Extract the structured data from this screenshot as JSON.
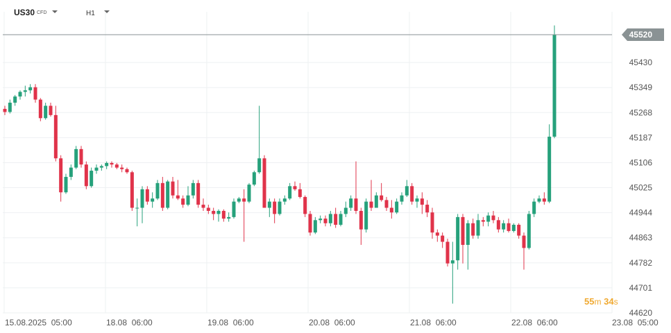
{
  "header": {
    "symbol": "US30",
    "symbol_type": "CFD",
    "timeframe": "H1"
  },
  "countdown": {
    "minutes": "55",
    "m_label": "m",
    "seconds": "34",
    "s_label": "s"
  },
  "colors": {
    "up": "#26a17b",
    "down": "#e0334a",
    "price_line": "#8a9294",
    "grid": "#eef0f2",
    "countdown": "#f0a930"
  },
  "chart_data": {
    "type": "candlestick",
    "title": "",
    "current_price": "45520",
    "ylim": [
      44620,
      45550
    ],
    "y_ticks": [
      "45430",
      "45349",
      "45268",
      "45187",
      "45106",
      "45025",
      "44944",
      "44863",
      "44782",
      "44701",
      "44620"
    ],
    "x_ticks": [
      "15.08.2025  05:00",
      "18.08  06:00",
      "19.08  06:00",
      "20.08  06:00",
      "21.08  06:00",
      "22.08  06:00",
      "23.08  05:00"
    ],
    "candles": [
      [
        45280,
        45290,
        45260,
        45270
      ],
      [
        45270,
        45310,
        45265,
        45300
      ],
      [
        45300,
        45325,
        45290,
        45320
      ],
      [
        45320,
        45340,
        45310,
        45335
      ],
      [
        45335,
        45355,
        45320,
        45340
      ],
      [
        45340,
        45360,
        45330,
        45350
      ],
      [
        45350,
        45360,
        45300,
        45310
      ],
      [
        45310,
        45315,
        45240,
        45250
      ],
      [
        45250,
        45300,
        45245,
        45290
      ],
      [
        45290,
        45300,
        45255,
        45260
      ],
      [
        45260,
        45290,
        45110,
        45120
      ],
      [
        45120,
        45130,
        44980,
        45010
      ],
      [
        45010,
        45070,
        45005,
        45060
      ],
      [
        45060,
        45100,
        45050,
        45090
      ],
      [
        45090,
        45160,
        45085,
        45150
      ],
      [
        45150,
        45160,
        45090,
        45100
      ],
      [
        45100,
        45110,
        45020,
        45030
      ],
      [
        45030,
        45090,
        45025,
        45080
      ],
      [
        45080,
        45100,
        45070,
        45090
      ],
      [
        45090,
        45100,
        45080,
        45095
      ],
      [
        45095,
        45110,
        45085,
        45105
      ],
      [
        45105,
        45110,
        45090,
        45100
      ],
      [
        45100,
        45105,
        45085,
        45090
      ],
      [
        45090,
        45100,
        45075,
        45085
      ],
      [
        45085,
        45090,
        45070,
        45075
      ],
      [
        45075,
        45080,
        44950,
        44960
      ],
      [
        44960,
        44990,
        44900,
        44960
      ],
      [
        44960,
        45030,
        44910,
        45020
      ],
      [
        45020,
        45030,
        44970,
        44980
      ],
      [
        44980,
        45010,
        44960,
        44990
      ],
      [
        44990,
        45050,
        44985,
        45040
      ],
      [
        45040,
        45060,
        44950,
        44960
      ],
      [
        44960,
        45050,
        44955,
        45045
      ],
      [
        45045,
        45060,
        44990,
        45000
      ],
      [
        45000,
        45050,
        44985,
        44990
      ],
      [
        44990,
        45000,
        44960,
        44970
      ],
      [
        44970,
        45030,
        44965,
        45000
      ],
      [
        45000,
        45050,
        44990,
        45040
      ],
      [
        45040,
        45050,
        44960,
        44970
      ],
      [
        44970,
        44990,
        44950,
        44960
      ],
      [
        44960,
        44970,
        44940,
        44950
      ],
      [
        44950,
        44960,
        44920,
        44940
      ],
      [
        44940,
        44955,
        44915,
        44950
      ],
      [
        44950,
        44955,
        44915,
        44925
      ],
      [
        44925,
        44945,
        44915,
        44930
      ],
      [
        44930,
        44990,
        44925,
        44980
      ],
      [
        44980,
        44995,
        44975,
        44990
      ],
      [
        44990,
        45020,
        44850,
        44980
      ],
      [
        44980,
        45040,
        44975,
        45035
      ],
      [
        45035,
        45080,
        45030,
        45075
      ],
      [
        45075,
        45290,
        45070,
        45120
      ],
      [
        45120,
        45130,
        44960,
        44960
      ],
      [
        44960,
        44990,
        44930,
        44980
      ],
      [
        44980,
        44990,
        44910,
        44940
      ],
      [
        44940,
        44990,
        44935,
        44980
      ],
      [
        44980,
        45000,
        44970,
        44990
      ],
      [
        44990,
        45040,
        44985,
        45030
      ],
      [
        45030,
        45045,
        45015,
        45020
      ],
      [
        45020,
        45040,
        44990,
        44995
      ],
      [
        44995,
        45000,
        44930,
        44940
      ],
      [
        44940,
        44950,
        44870,
        44880
      ],
      [
        44880,
        44930,
        44875,
        44920
      ],
      [
        44920,
        44935,
        44910,
        44925
      ],
      [
        44925,
        44935,
        44900,
        44910
      ],
      [
        44910,
        44950,
        44900,
        44940
      ],
      [
        44940,
        44960,
        44895,
        44905
      ],
      [
        44905,
        44950,
        44900,
        44940
      ],
      [
        44940,
        44980,
        44930,
        44960
      ],
      [
        44960,
        45000,
        44950,
        44990
      ],
      [
        44990,
        45110,
        44940,
        44950
      ],
      [
        44950,
        44960,
        44840,
        44890
      ],
      [
        44890,
        44990,
        44880,
        44980
      ],
      [
        44980,
        45050,
        44950,
        44960
      ],
      [
        44960,
        45010,
        44960,
        45000
      ],
      [
        45000,
        45040,
        44980,
        44985
      ],
      [
        44985,
        44995,
        44950,
        44960
      ],
      [
        44960,
        44985,
        44925,
        44945
      ],
      [
        44945,
        44990,
        44940,
        44980
      ],
      [
        44980,
        45010,
        44970,
        45000
      ],
      [
        45000,
        45050,
        44995,
        45030
      ],
      [
        45030,
        45040,
        44970,
        44980
      ],
      [
        44980,
        45000,
        44960,
        44990
      ],
      [
        44990,
        45010,
        44940,
        44970
      ],
      [
        44970,
        44985,
        44930,
        44945
      ],
      [
        44945,
        44960,
        44860,
        44880
      ],
      [
        44880,
        44890,
        44850,
        44870
      ],
      [
        44870,
        44880,
        44830,
        44850
      ],
      [
        44850,
        44860,
        44770,
        44780
      ],
      [
        44780,
        44850,
        44650,
        44790
      ],
      [
        44790,
        44940,
        44760,
        44930
      ],
      [
        44930,
        44940,
        44780,
        44840
      ],
      [
        44840,
        44920,
        44760,
        44910
      ],
      [
        44910,
        44925,
        44860,
        44870
      ],
      [
        44870,
        44940,
        44860,
        44920
      ],
      [
        44920,
        44930,
        44900,
        44915
      ],
      [
        44915,
        44945,
        44900,
        44935
      ],
      [
        44935,
        44950,
        44910,
        44920
      ],
      [
        44920,
        44930,
        44880,
        44890
      ],
      [
        44890,
        44920,
        44880,
        44910
      ],
      [
        44910,
        44925,
        44880,
        44885
      ],
      [
        44885,
        44910,
        44880,
        44905
      ],
      [
        44905,
        44910,
        44860,
        44870
      ],
      [
        44870,
        44880,
        44760,
        44830
      ],
      [
        44830,
        44950,
        44825,
        44940
      ],
      [
        44940,
        44990,
        44930,
        44980
      ],
      [
        44980,
        45000,
        44975,
        44990
      ],
      [
        44990,
        45010,
        44970,
        44980
      ],
      [
        44980,
        45230,
        44975,
        45190
      ],
      [
        45190,
        45550,
        45185,
        45520
      ]
    ]
  }
}
